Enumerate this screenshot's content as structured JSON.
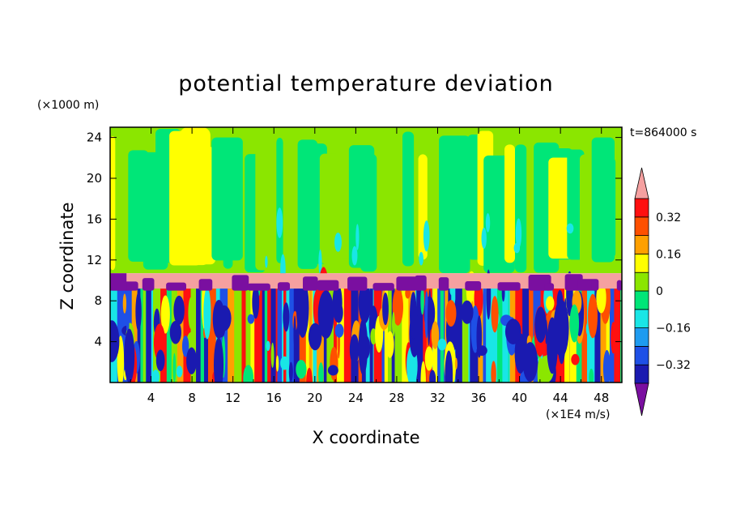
{
  "chart_data": {
    "type": "heatmap",
    "title": "potential temperature deviation",
    "xlabel": "X coordinate",
    "ylabel": "Z coordinate",
    "x_unit": "(×1E4 m/s)",
    "y_unit": "(×1000 m)",
    "time_label": "t=864000 s",
    "xlim": [
      0,
      50
    ],
    "ylim": [
      0,
      25
    ],
    "x_ticks": [
      "4",
      "8",
      "12",
      "16",
      "20",
      "24",
      "28",
      "32",
      "36",
      "40",
      "44",
      "48"
    ],
    "y_ticks": [
      "4",
      "8",
      "12",
      "16",
      "20",
      "24"
    ],
    "colorbar": {
      "levels": [
        -0.4,
        -0.32,
        -0.24,
        -0.16,
        -0.08,
        0,
        0.08,
        0.16,
        0.24,
        0.32,
        0.4
      ],
      "labels": [
        "0.32",
        "0.16",
        "0",
        "−0.16",
        "−0.32"
      ],
      "colors": [
        "#7a0fa0",
        "#1a1ab0",
        "#1e50e6",
        "#1e9bf0",
        "#19e6e6",
        "#00e678",
        "#8be600",
        "#ffff00",
        "#ffa000",
        "#ff5000",
        "#ff1010",
        "#f5a0a0"
      ],
      "under_color": "#7a0fa0",
      "over_color": "#f5a0a0"
    },
    "layers": [
      {
        "name": "upper",
        "z_range": [
          10.7,
          25
        ],
        "dominant": [
          "#8be600",
          "#00e678",
          "#ffff00"
        ]
      },
      {
        "name": "band-positive",
        "z_range": [
          9.2,
          10.7
        ],
        "dominant": [
          "#f5a0a0"
        ]
      },
      {
        "name": "band-negative",
        "z_range": [
          9.0,
          10.7
        ],
        "dominant": [
          "#7a0fa0"
        ]
      },
      {
        "name": "lower",
        "z_range": [
          0,
          9.2
        ],
        "dominant": [
          "#1a1ab0",
          "#19e6e6",
          "#ff5000",
          "#ffff00",
          "#00e678"
        ]
      }
    ]
  }
}
